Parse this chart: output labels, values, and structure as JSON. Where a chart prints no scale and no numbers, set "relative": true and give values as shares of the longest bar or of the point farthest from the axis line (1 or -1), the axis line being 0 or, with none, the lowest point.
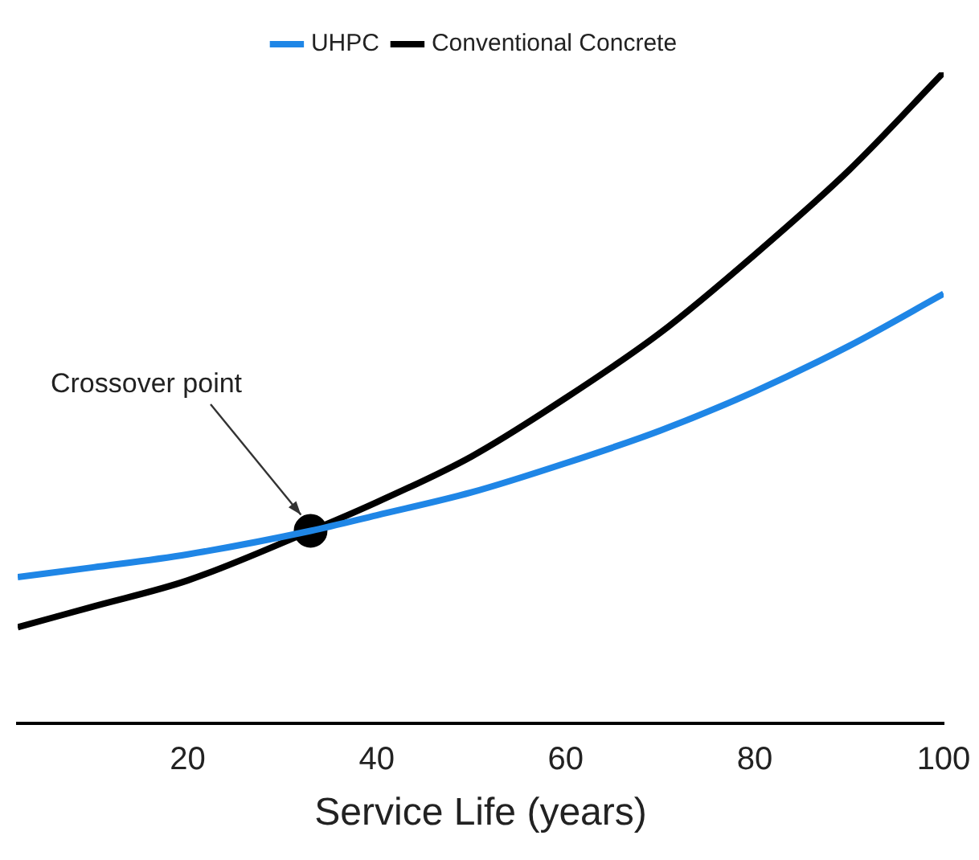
{
  "chart_data": {
    "type": "line",
    "relative": true,
    "xlabel": "Service Life (years)",
    "xlim": [
      2,
      100
    ],
    "xticks": [
      20,
      40,
      60,
      80,
      100
    ],
    "legend": "top",
    "grid": false,
    "marker": "none",
    "series": [
      {
        "name": "UHPC",
        "color": "#1f86e6",
        "x": [
          2,
          10,
          20,
          33,
          40,
          50,
          60,
          70,
          80,
          90,
          100
        ],
        "values": [
          0.225,
          0.24,
          0.26,
          0.296,
          0.32,
          0.355,
          0.4,
          0.45,
          0.51,
          0.58,
          0.66
        ]
      },
      {
        "name": "Conventional Concrete",
        "color": "#000000",
        "x": [
          2,
          10,
          20,
          33,
          40,
          50,
          60,
          70,
          80,
          90,
          100
        ],
        "values": [
          0.148,
          0.18,
          0.22,
          0.296,
          0.34,
          0.41,
          0.5,
          0.6,
          0.72,
          0.85,
          1.0
        ]
      },
      {
        "type": "scatter",
        "color": "#000000",
        "marker": "circle",
        "x": [
          33
        ],
        "values": [
          0.296
        ]
      }
    ],
    "annotations": [
      "Crossover point"
    ]
  }
}
